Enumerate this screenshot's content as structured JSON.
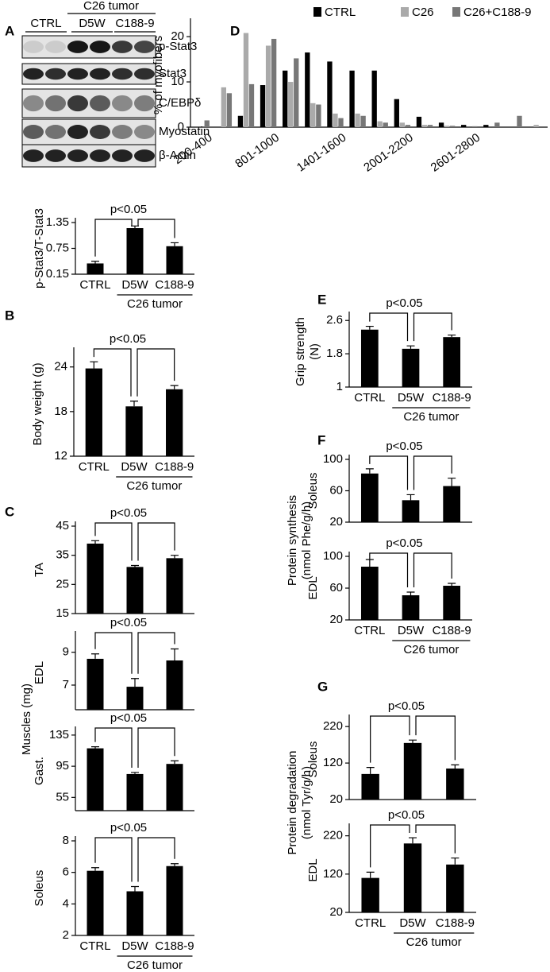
{
  "blot": {
    "panel": "A",
    "header": "C26 tumor",
    "lanes": [
      "CTRL",
      "D5W",
      "C188-9"
    ],
    "bands": [
      "p-Stat3",
      "Stat3",
      "C/EBPδ",
      "Myostatin",
      "β-Actin"
    ]
  },
  "chart_data": [
    {
      "type": "bar",
      "ylabel": "p-Stat3/T-Stat3",
      "categories": [
        "CTRL",
        "D5W",
        "C188-9"
      ],
      "group_label": "C26 tumor",
      "annotation": "p<0.05",
      "values": [
        0.4,
        1.22,
        0.8
      ],
      "errors": [
        0.05,
        0.05,
        0.08
      ],
      "color": "#000000",
      "ylim": [
        0.15,
        1.35
      ],
      "yticks": [
        0.15,
        0.75,
        1.35
      ]
    },
    {
      "type": "bar",
      "panel": "B",
      "ylabel": "Body weight (g)",
      "categories": [
        "CTRL",
        "D5W",
        "C188-9"
      ],
      "group_label": "C26 tumor",
      "annotation": "p<0.05",
      "values": [
        23.8,
        18.7,
        21
      ],
      "errors": [
        0.9,
        0.7,
        0.5
      ],
      "color": "#000000",
      "ylim": [
        12,
        26
      ],
      "yticks": [
        12,
        18,
        24
      ]
    },
    {
      "type": "bar",
      "panel": "C",
      "shared_ylabel": "Muscles (mg)",
      "ylabel": "TA",
      "annotation": "p<0.05",
      "values": [
        39,
        31,
        34
      ],
      "errors": [
        1,
        0.5,
        1
      ],
      "color": "#000000",
      "ylim": [
        15,
        45
      ],
      "yticks": [
        15,
        25,
        35,
        45
      ]
    },
    {
      "type": "bar",
      "ylabel": "EDL",
      "annotation": "p<0.05",
      "values": [
        8.6,
        6.9,
        8.5
      ],
      "errors": [
        0.3,
        0.5,
        0.7
      ],
      "color": "#000000",
      "ylim": [
        5.5,
        10
      ],
      "yticks": [
        7,
        9
      ]
    },
    {
      "type": "bar",
      "ylabel": "Gast.",
      "annotation": "p<0.05",
      "values": [
        118,
        85,
        98
      ],
      "errors": [
        2,
        2,
        4
      ],
      "color": "#000000",
      "ylim": [
        38,
        140
      ],
      "yticks": [
        55,
        95,
        135
      ]
    },
    {
      "type": "bar",
      "ylabel": "Soleus",
      "categories": [
        "CTRL",
        "D5W",
        "C188-9"
      ],
      "group_label": "C26 tumor",
      "annotation": "p<0.05",
      "values": [
        6.1,
        4.8,
        6.4
      ],
      "errors": [
        0.2,
        0.3,
        0.15
      ],
      "color": "#000000",
      "ylim": [
        2,
        8
      ],
      "yticks": [
        2,
        4,
        6,
        8
      ]
    },
    {
      "type": "grouped_bar",
      "panel": "D",
      "ylabel": "% of myofibers",
      "categories": [
        "200-400",
        null,
        null,
        "801-1000",
        null,
        null,
        "1401-1600",
        null,
        null,
        "2001-2200",
        null,
        null,
        "2601-2800",
        null,
        null,
        null
      ],
      "series": [
        {
          "name": "CTRL",
          "color": "#000000",
          "values": [
            0,
            0,
            2.5,
            9.3,
            12.5,
            16.5,
            14.5,
            12.5,
            12.5,
            6.2,
            2.3,
            1,
            0.5,
            0.5,
            0,
            0
          ]
        },
        {
          "name": "C26",
          "color": "#aaaaaa",
          "values": [
            0,
            8.8,
            20.8,
            18,
            10,
            5.3,
            3,
            3,
            1.3,
            1,
            0.5,
            0.3,
            0,
            0,
            0,
            0.5
          ]
        },
        {
          "name": "C26+C188-9",
          "color": "#777777",
          "values": [
            1.5,
            7.5,
            9.5,
            19.5,
            15.2,
            5,
            2,
            2.5,
            1,
            0.5,
            0.5,
            0.3,
            0.2,
            1,
            2.5,
            0
          ]
        }
      ],
      "ylim": [
        0,
        23
      ],
      "yticks": [
        0,
        10,
        20
      ]
    },
    {
      "type": "bar",
      "panel": "E",
      "ylabel": [
        "Grip strength",
        "(N)"
      ],
      "categories": [
        "CTRL",
        "D5W",
        "C188-9"
      ],
      "group_label": "C26 tumor",
      "annotation": "p<0.05",
      "values": [
        2.38,
        1.92,
        2.2
      ],
      "errors": [
        0.08,
        0.07,
        0.05
      ],
      "color": "#000000",
      "ylim": [
        1,
        2.7
      ],
      "yticks": [
        1,
        1.8,
        2.6
      ]
    },
    {
      "type": "bar",
      "panel": "F",
      "shared_ylabel": [
        "Protein synthesis",
        "(nmol Phe/g/h)"
      ],
      "ylabel": "Soleus",
      "annotation": "p<0.05",
      "values": [
        82,
        48,
        66
      ],
      "errors": [
        6,
        7,
        10
      ],
      "color": "#000000",
      "ylim": [
        20,
        100
      ],
      "yticks": [
        20,
        60,
        100
      ]
    },
    {
      "type": "bar",
      "ylabel": "EDL",
      "categories": [
        "CTRL",
        "D5W",
        "C188-9"
      ],
      "group_label": "C26 tumor",
      "annotation": "p<0.05",
      "values": [
        87,
        51,
        63
      ],
      "errors": [
        9,
        4,
        3
      ],
      "color": "#000000",
      "ylim": [
        20,
        100
      ],
      "yticks": [
        20,
        60,
        100
      ]
    },
    {
      "type": "bar",
      "panel": "G",
      "shared_ylabel": [
        "Protein degradation",
        "(nmol Tyr/g/h)"
      ],
      "ylabel": "Soleus",
      "annotation": "p<0.05",
      "values": [
        90,
        175,
        105
      ],
      "errors": [
        18,
        8,
        10
      ],
      "color": "#000000",
      "ylim": [
        20,
        240
      ],
      "yticks": [
        20,
        120,
        220
      ]
    },
    {
      "type": "bar",
      "ylabel": "EDL",
      "categories": [
        "CTRL",
        "D5W",
        "C188-9"
      ],
      "group_label": "C26 tumor",
      "annotation": "p<0.05",
      "values": [
        110,
        200,
        145
      ],
      "errors": [
        15,
        15,
        17
      ],
      "color": "#000000",
      "ylim": [
        20,
        240
      ],
      "yticks": [
        20,
        120,
        220
      ]
    }
  ]
}
